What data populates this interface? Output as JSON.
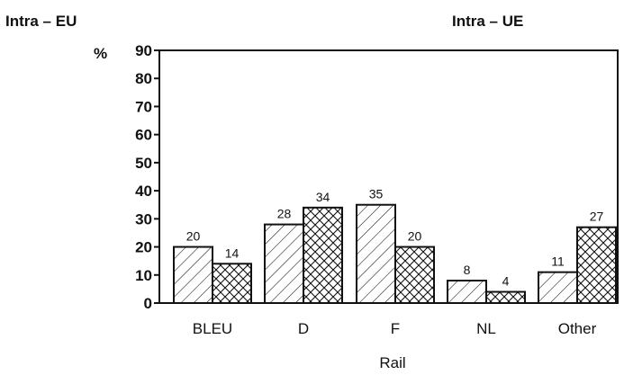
{
  "header": {
    "left_title": "Intra – EU",
    "right_title": "Intra – UE"
  },
  "chart_data": {
    "type": "bar",
    "title": "",
    "xlabel": "Rail",
    "ylabel": "%",
    "ylim": [
      0,
      90
    ],
    "yticks": [
      0,
      10,
      20,
      30,
      40,
      50,
      60,
      70,
      80,
      90
    ],
    "categories": [
      "BLEU",
      "D",
      "F",
      "NL",
      "Other"
    ],
    "series": [
      {
        "values": [
          20,
          28,
          35,
          8,
          11
        ],
        "pattern": "diagonal-hatch"
      },
      {
        "values": [
          14,
          34,
          20,
          4,
          27
        ],
        "pattern": "cross-hatch"
      }
    ],
    "data_labels": true,
    "grid": false,
    "legend": "none",
    "colors": {
      "ink": "#111111",
      "background": "#ffffff"
    }
  }
}
